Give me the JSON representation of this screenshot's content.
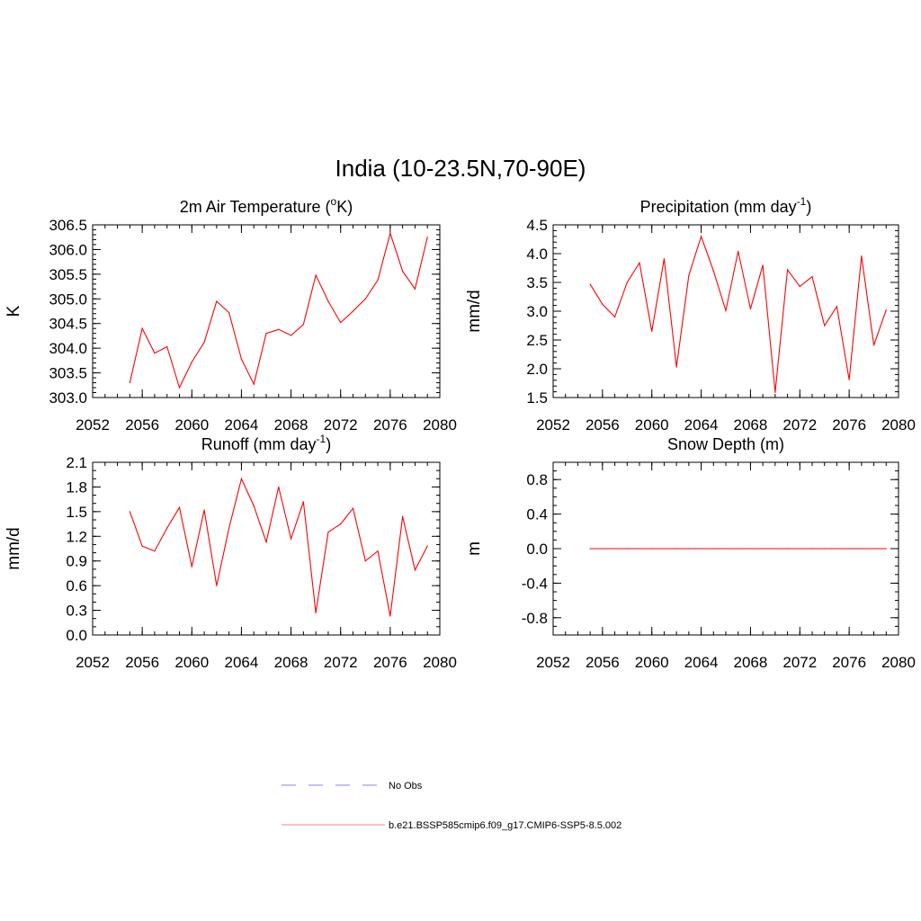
{
  "title": "India (10-23.5N,70-90E)",
  "colors": {
    "model": "#ff0000",
    "obs": "#9999ff",
    "legend_model": "#ff9999"
  },
  "legend": {
    "obs_label": "No Obs",
    "model_label": "b.e21.BSSP585cmip6.f09_g17.CMIP6-SSP5-8.5.002"
  },
  "chart_data": [
    {
      "type": "line",
      "title": "2m Air Temperature (°K)",
      "title_text": "2m Air Temperature (",
      "title_sup": "o",
      "title_end": "K)",
      "ylabel": "K",
      "xlim": [
        2052,
        2080
      ],
      "ylim": [
        303.0,
        306.5
      ],
      "xticks": [
        2052,
        2056,
        2060,
        2064,
        2068,
        2072,
        2076,
        2080
      ],
      "yticks": [
        "303.0",
        "303.5",
        "304.0",
        "304.5",
        "305.0",
        "305.5",
        "306.0",
        "306.5"
      ],
      "yminor": 0.1,
      "x": [
        2055,
        2056,
        2057,
        2058,
        2059,
        2060,
        2061,
        2062,
        2063,
        2064,
        2065,
        2066,
        2067,
        2068,
        2069,
        2070,
        2071,
        2072,
        2073,
        2074,
        2075,
        2076,
        2077,
        2078,
        2079
      ],
      "series": [
        {
          "name": "b.e21.BSSP585cmip6.f09_g17.CMIP6-SSP5-8.5.002",
          "values": [
            303.3,
            304.4,
            303.9,
            304.03,
            303.2,
            303.72,
            304.12,
            304.95,
            304.72,
            303.78,
            303.27,
            304.3,
            304.38,
            304.26,
            304.48,
            305.48,
            304.95,
            304.52,
            304.75,
            305.0,
            305.38,
            306.33,
            305.56,
            305.2,
            306.25
          ]
        }
      ]
    },
    {
      "type": "line",
      "title": "Precipitation (mm day-1)",
      "title_text": "Precipitation (mm day",
      "title_sup": "-1",
      "title_end": ")",
      "ylabel": "mm/d",
      "xlim": [
        2052,
        2080
      ],
      "ylim": [
        1.5,
        4.5
      ],
      "xticks": [
        2052,
        2056,
        2060,
        2064,
        2068,
        2072,
        2076,
        2080
      ],
      "yticks": [
        "1.5",
        "2.0",
        "2.5",
        "3.0",
        "3.5",
        "4.0",
        "4.5"
      ],
      "yminor": 0.1,
      "x": [
        2055,
        2056,
        2057,
        2058,
        2059,
        2060,
        2061,
        2062,
        2063,
        2064,
        2065,
        2066,
        2067,
        2068,
        2069,
        2070,
        2071,
        2072,
        2073,
        2074,
        2075,
        2076,
        2077,
        2078,
        2079
      ],
      "series": [
        {
          "name": "b.e21.BSSP585cmip6.f09_g17.CMIP6-SSP5-8.5.002",
          "values": [
            3.47,
            3.12,
            2.9,
            3.5,
            3.84,
            2.65,
            3.91,
            2.03,
            3.62,
            4.3,
            3.7,
            3.01,
            4.04,
            3.04,
            3.8,
            1.59,
            3.72,
            3.43,
            3.6,
            2.75,
            3.08,
            1.81,
            3.96,
            2.41,
            3.02
          ]
        }
      ]
    },
    {
      "type": "line",
      "title": "Runoff (mm day-1)",
      "title_text": "Runoff (mm day",
      "title_sup": "-1",
      "title_end": ")",
      "ylabel": "mm/d",
      "xlim": [
        2052,
        2080
      ],
      "ylim": [
        0.0,
        2.1
      ],
      "xticks": [
        2052,
        2056,
        2060,
        2064,
        2068,
        2072,
        2076,
        2080
      ],
      "yticks": [
        "0.0",
        "0.3",
        "0.6",
        "0.9",
        "1.2",
        "1.5",
        "1.8",
        "2.1"
      ],
      "yminor": 0.1,
      "x": [
        2055,
        2056,
        2057,
        2058,
        2059,
        2060,
        2061,
        2062,
        2063,
        2064,
        2065,
        2066,
        2067,
        2068,
        2069,
        2070,
        2071,
        2072,
        2073,
        2074,
        2075,
        2076,
        2077,
        2078,
        2079
      ],
      "series": [
        {
          "name": "b.e21.BSSP585cmip6.f09_g17.CMIP6-SSP5-8.5.002",
          "values": [
            1.5,
            1.08,
            1.02,
            1.3,
            1.55,
            0.83,
            1.52,
            0.6,
            1.3,
            1.9,
            1.57,
            1.13,
            1.8,
            1.17,
            1.62,
            0.27,
            1.25,
            1.35,
            1.54,
            0.9,
            1.02,
            0.23,
            1.44,
            0.79,
            1.08
          ]
        }
      ]
    },
    {
      "type": "line",
      "title": "Snow Depth (m)",
      "title_text": "Snow Depth (m)",
      "title_sup": "",
      "title_end": "",
      "ylabel": "m",
      "xlim": [
        2052,
        2080
      ],
      "ylim": [
        -1.0,
        1.0
      ],
      "xticks": [
        2052,
        2056,
        2060,
        2064,
        2068,
        2072,
        2076,
        2080
      ],
      "yticks": [
        "-0.8",
        "-0.4",
        "0.0",
        "0.4",
        "0.8"
      ],
      "yminor": 0.1,
      "x": [
        2055,
        2056,
        2057,
        2058,
        2059,
        2060,
        2061,
        2062,
        2063,
        2064,
        2065,
        2066,
        2067,
        2068,
        2069,
        2070,
        2071,
        2072,
        2073,
        2074,
        2075,
        2076,
        2077,
        2078,
        2079
      ],
      "series": [
        {
          "name": "b.e21.BSSP585cmip6.f09_g17.CMIP6-SSP5-8.5.002",
          "values": [
            0,
            0,
            0,
            0,
            0,
            0,
            0,
            0,
            0,
            0,
            0,
            0,
            0,
            0,
            0,
            0,
            0,
            0,
            0,
            0,
            0,
            0,
            0,
            0,
            0
          ]
        }
      ]
    }
  ]
}
